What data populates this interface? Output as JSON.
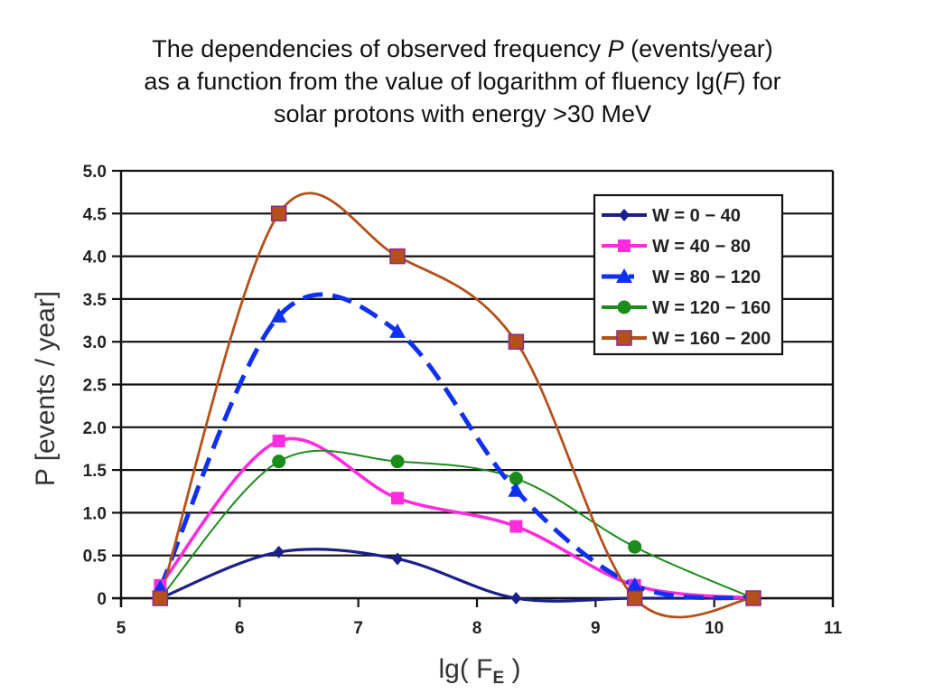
{
  "title": {
    "line1_pre": "The dependencies of observed frequency ",
    "line1_var": "P",
    "line1_post": " (events/year)",
    "line2_pre": "as a function from the value of logarithm of fluency lg(",
    "line2_var": "F",
    "line2_post": ") for",
    "line3": "solar protons with energy >30 MeV"
  },
  "chart_data": {
    "type": "line",
    "title": "The dependencies of observed frequency P (events/year) as a function from the value of logarithm of fluency lg(F) for solar protons with energy >30 MeV",
    "xlabel": "lg( F_E )",
    "xlabel_main": "lg( F",
    "xlabel_sub": "E",
    "xlabel_close": " )",
    "ylabel": "P   [events / year]",
    "xlim": [
      5,
      11
    ],
    "ylim": [
      0,
      5.0
    ],
    "xticks": [
      5,
      6,
      7,
      8,
      9,
      10,
      11
    ],
    "xtick_labels": [
      "5",
      "6",
      "7",
      "8",
      "9",
      "10",
      "11"
    ],
    "yticks": [
      0,
      0.5,
      1.0,
      1.5,
      2.0,
      2.5,
      3.0,
      3.5,
      4.0,
      4.5,
      5.0
    ],
    "ytick_labels": [
      "0",
      "0.5",
      "1.0",
      "1.5",
      "2.0",
      "2.5",
      "3.0",
      "3.5",
      "4.0",
      "4.5",
      "5.0"
    ],
    "grid": "horizontal",
    "legend_position": "top-right",
    "x": [
      5.33,
      6.33,
      7.33,
      8.33,
      9.33,
      10.33
    ],
    "series": [
      {
        "name": "W = 0 − 40",
        "color": "#1a1f8c",
        "marker": "diamond",
        "dash": false,
        "values": [
          0,
          0.54,
          0.46,
          0,
          0,
          0
        ]
      },
      {
        "name": "W = 40 − 80",
        "color": "#ff2bdc",
        "marker": "square",
        "dash": false,
        "values": [
          0.15,
          1.84,
          1.17,
          0.84,
          0.15,
          0
        ]
      },
      {
        "name": "W = 80 − 120",
        "color": "#1030f0",
        "marker": "triangle",
        "dash": true,
        "values": [
          0.12,
          3.3,
          3.12,
          1.26,
          0.15,
          0
        ]
      },
      {
        "name": "W = 120 − 160",
        "color": "#1a8c1a",
        "marker": "circle",
        "dash": false,
        "values": [
          0,
          1.6,
          1.6,
          1.4,
          0.6,
          0
        ]
      },
      {
        "name": "W = 160 − 200",
        "color": "#b5501a",
        "marker": "square-outlined",
        "dash": false,
        "values": [
          0,
          4.5,
          4.0,
          3.0,
          0,
          0
        ]
      }
    ]
  }
}
